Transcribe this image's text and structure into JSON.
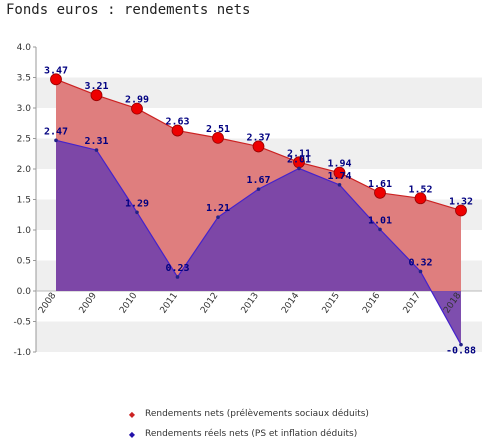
{
  "chart_data": {
    "type": "line",
    "title": "Fonds euros : rendements nets",
    "categories": [
      "2008",
      "2009",
      "2010",
      "2011",
      "2012",
      "2013",
      "2014",
      "2015",
      "2016",
      "2017",
      "2018"
    ],
    "series": [
      {
        "name": "Rendements nets (prélèvements sociaux déduits)",
        "values": [
          3.47,
          3.21,
          2.99,
          2.63,
          2.51,
          2.37,
          2.11,
          1.94,
          1.61,
          1.52,
          1.32
        ],
        "labels": [
          "3.47",
          "3.21",
          "2.99",
          "2.63",
          "2.51",
          "2.37",
          "2.11",
          "1.94",
          "1.61",
          "1.52",
          "1.32"
        ],
        "line_color": "#cc2222",
        "fill_color": "#dd7777",
        "marker_color": "#ee0000"
      },
      {
        "name": "Rendements réels nets (PS et inflation déduits)",
        "values": [
          2.47,
          2.31,
          1.29,
          0.23,
          1.21,
          1.67,
          2.01,
          1.74,
          1.01,
          0.32,
          -0.88
        ],
        "labels": [
          "2.47",
          "2.31",
          "1.29",
          "0.23",
          "1.21",
          "1.67",
          "2.01",
          "1.74",
          "1.01",
          "0.32",
          "-0.88"
        ],
        "line_color": "#4422cc",
        "fill_color": "#7744aa",
        "marker_color": "#222288"
      }
    ],
    "y_ticks": [
      "4.0",
      "3.5",
      "3.0",
      "2.5",
      "2.0",
      "1.5",
      "1.0",
      "0.5",
      "0.0",
      "-0.5",
      "-1.0"
    ],
    "ylim": [
      -1.0,
      4.0
    ],
    "grid": "horizontal bands",
    "legend_position": "bottom"
  }
}
